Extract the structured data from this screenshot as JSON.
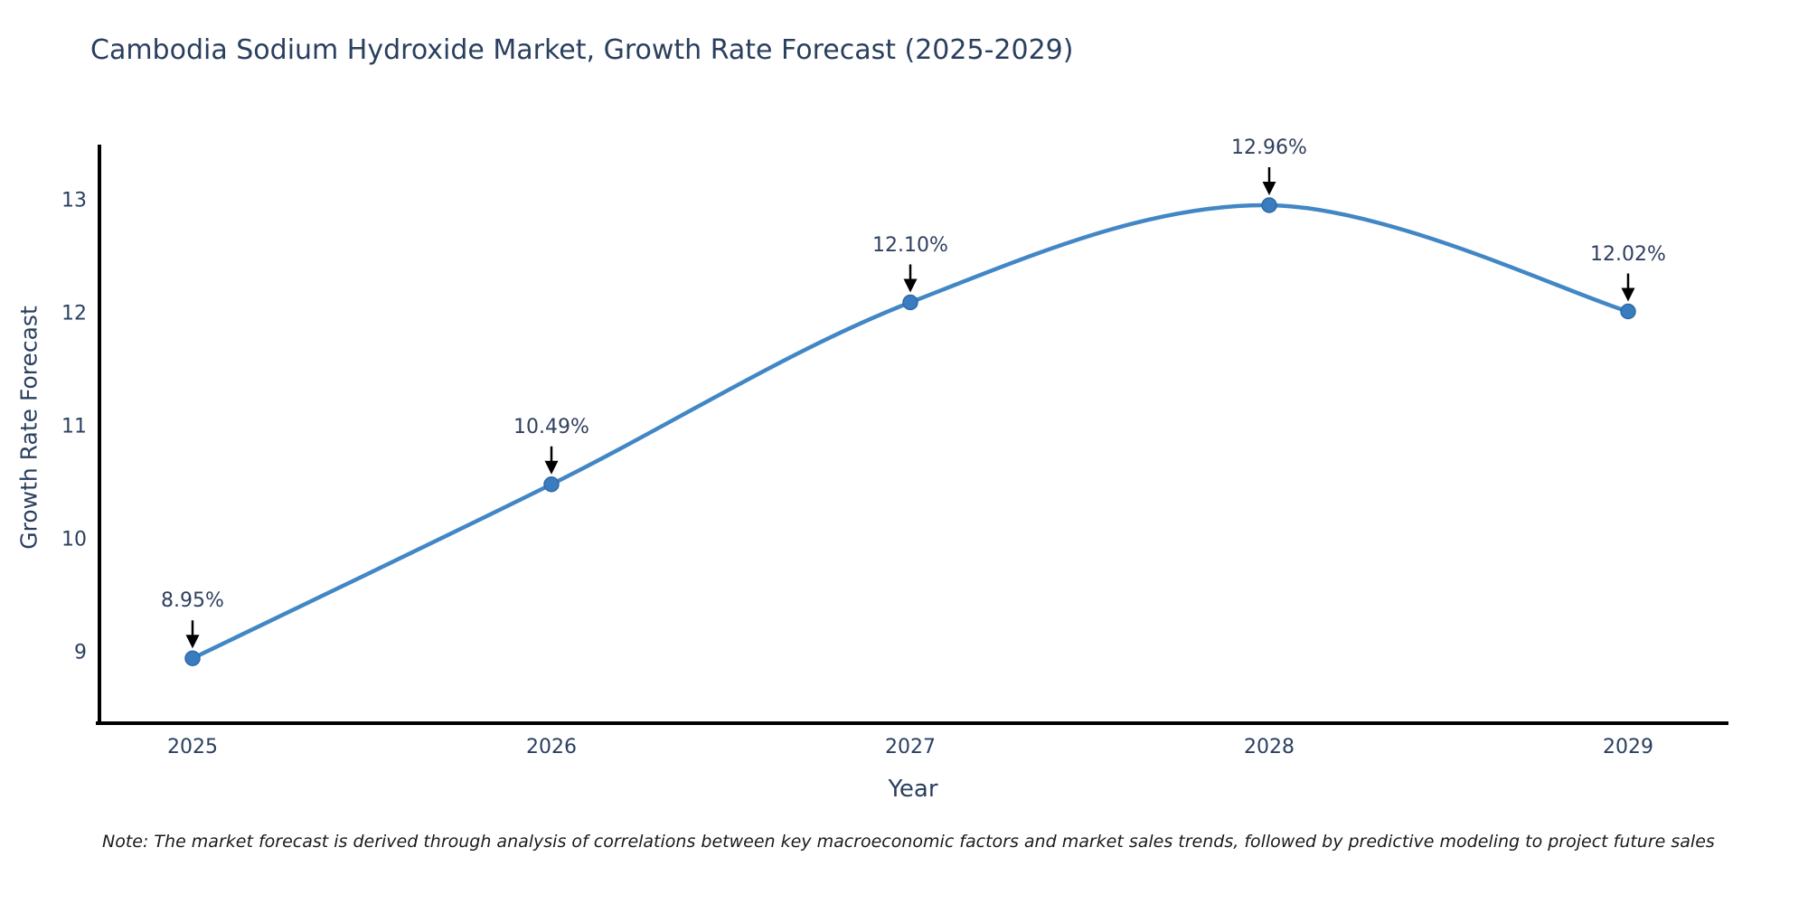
{
  "chart_data": {
    "type": "line",
    "title": "Cambodia Sodium Hydroxide Market, Growth Rate Forecast (2025-2029)",
    "xlabel": "Year",
    "ylabel": "Growth Rate Forecast",
    "categories": [
      "2025",
      "2026",
      "2027",
      "2028",
      "2029"
    ],
    "values": [
      8.95,
      10.49,
      12.1,
      12.96,
      12.02
    ],
    "point_labels": [
      "8.95%",
      "10.49%",
      "12.10%",
      "12.96%",
      "12.02%"
    ],
    "yticks": [
      9,
      10,
      11,
      12,
      13
    ],
    "ylim": [
      8.37,
      13.5
    ],
    "grid": false,
    "legend_position": "none",
    "line_color": "#4287c5",
    "marker_color": "#3a7cbf",
    "marker_edge_color": "#2d6aa5",
    "axis_color": "#000000",
    "text_color": "#2a3f5f",
    "annotation_arrow_color": "#000000"
  },
  "note": "Note: The market forecast is derived through analysis of correlations between key macroeconomic factors and market sales trends, followed by predictive modeling to project future sales"
}
